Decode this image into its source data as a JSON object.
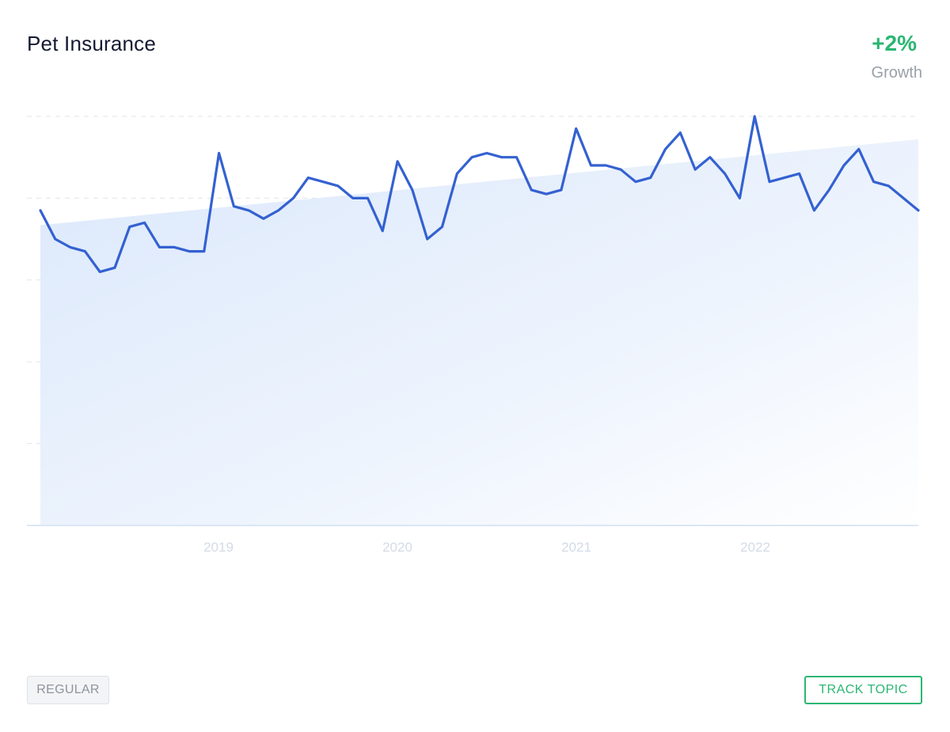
{
  "header": {
    "title": "Pet Insurance",
    "growth_value": "+2%",
    "growth_label": "Growth"
  },
  "buttons": {
    "regular_label": "REGULAR",
    "track_label": "TRACK TOPIC"
  },
  "colors": {
    "line": "#3461d1",
    "growth": "#2bb673",
    "fill_top": "#dbe8fb",
    "grid": "#dfe3ea",
    "axis": "#dce6f5",
    "tick_label": "#d3dbe7"
  },
  "chart_data": {
    "type": "line",
    "x_ticks": [
      "2019",
      "2020",
      "2021",
      "2022"
    ],
    "grid": true,
    "series": [
      {
        "values": [
          77,
          70,
          68,
          67,
          62,
          63,
          73,
          74,
          68,
          68,
          67,
          67,
          91,
          78,
          77,
          75,
          77,
          80,
          85,
          84,
          83,
          80,
          80,
          72,
          89,
          82,
          70,
          73,
          86,
          90,
          91,
          90,
          90,
          82,
          81,
          82,
          97,
          88,
          88,
          87,
          84,
          85,
          92,
          96,
          87,
          90,
          86,
          80,
          100,
          84,
          85,
          86,
          77,
          82,
          88,
          92,
          84,
          83,
          80,
          77
        ]
      },
      {
        "name": "trend",
        "values": [
          73.4,
          94.4
        ]
      }
    ],
    "ylim": [
      0,
      100
    ]
  }
}
